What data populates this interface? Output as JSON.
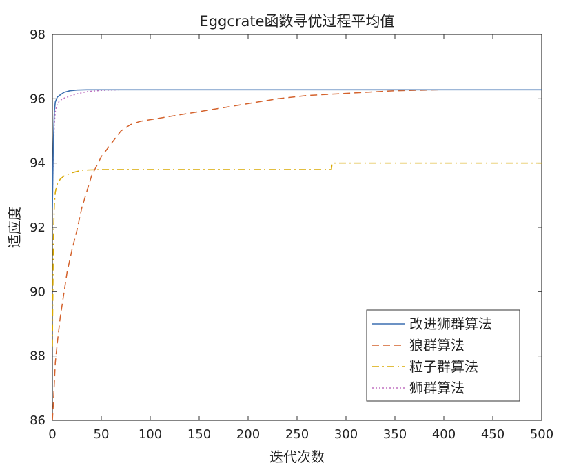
{
  "chart_data": {
    "type": "line",
    "title": "Eggcrate函数寻优过程平均值",
    "xlabel": "迭代次数",
    "ylabel": "适应度",
    "xlim": [
      0,
      500
    ],
    "ylim": [
      86,
      98
    ],
    "xticks": [
      0,
      50,
      100,
      150,
      200,
      250,
      300,
      350,
      400,
      450,
      500
    ],
    "yticks": [
      86,
      88,
      90,
      92,
      94,
      96,
      98
    ],
    "grid": false,
    "legend_position": "bottom-right",
    "series": [
      {
        "name": "改进狮群算法",
        "color": "#3b6fb0",
        "style": "solid",
        "x": [
          0,
          1,
          2,
          3,
          5,
          8,
          12,
          18,
          25,
          35,
          50,
          500
        ],
        "y": [
          92.6,
          94.6,
          95.6,
          95.9,
          96.05,
          96.12,
          96.2,
          96.25,
          96.27,
          96.28,
          96.28,
          96.28
        ]
      },
      {
        "name": "狼群算法",
        "color": "#d4622c",
        "style": "dashed",
        "x": [
          0,
          1,
          3,
          5,
          8,
          12,
          15,
          20,
          25,
          30,
          35,
          40,
          45,
          50,
          55,
          60,
          65,
          70,
          80,
          90,
          100,
          110,
          120,
          130,
          150,
          170,
          200,
          230,
          260,
          290,
          320,
          350,
          400,
          450,
          500
        ],
        "y": [
          86.0,
          86.5,
          87.8,
          88.4,
          89.2,
          90.0,
          90.6,
          91.3,
          91.9,
          92.6,
          93.1,
          93.6,
          93.9,
          94.2,
          94.4,
          94.6,
          94.8,
          95.0,
          95.2,
          95.3,
          95.35,
          95.4,
          95.45,
          95.5,
          95.6,
          95.7,
          95.85,
          96.0,
          96.1,
          96.15,
          96.2,
          96.25,
          96.28,
          96.28,
          96.28
        ]
      },
      {
        "name": "粒子群算法",
        "color": "#d9a800",
        "style": "dashdot",
        "x": [
          0,
          1,
          2,
          3,
          5,
          8,
          12,
          20,
          30,
          50,
          100,
          200,
          285,
          286,
          500
        ],
        "y": [
          88.3,
          91.5,
          92.7,
          93.1,
          93.35,
          93.5,
          93.6,
          93.7,
          93.78,
          93.8,
          93.8,
          93.8,
          93.8,
          94.0,
          94.0
        ]
      },
      {
        "name": "狮群算法",
        "color": "#c070c0",
        "style": "dotted",
        "x": [
          0,
          1,
          2,
          3,
          5,
          8,
          12,
          18,
          25,
          35,
          50,
          70,
          500
        ],
        "y": [
          92.8,
          94.3,
          95.2,
          95.6,
          95.85,
          95.95,
          96.02,
          96.08,
          96.15,
          96.22,
          96.26,
          96.28,
          96.28
        ]
      }
    ]
  }
}
